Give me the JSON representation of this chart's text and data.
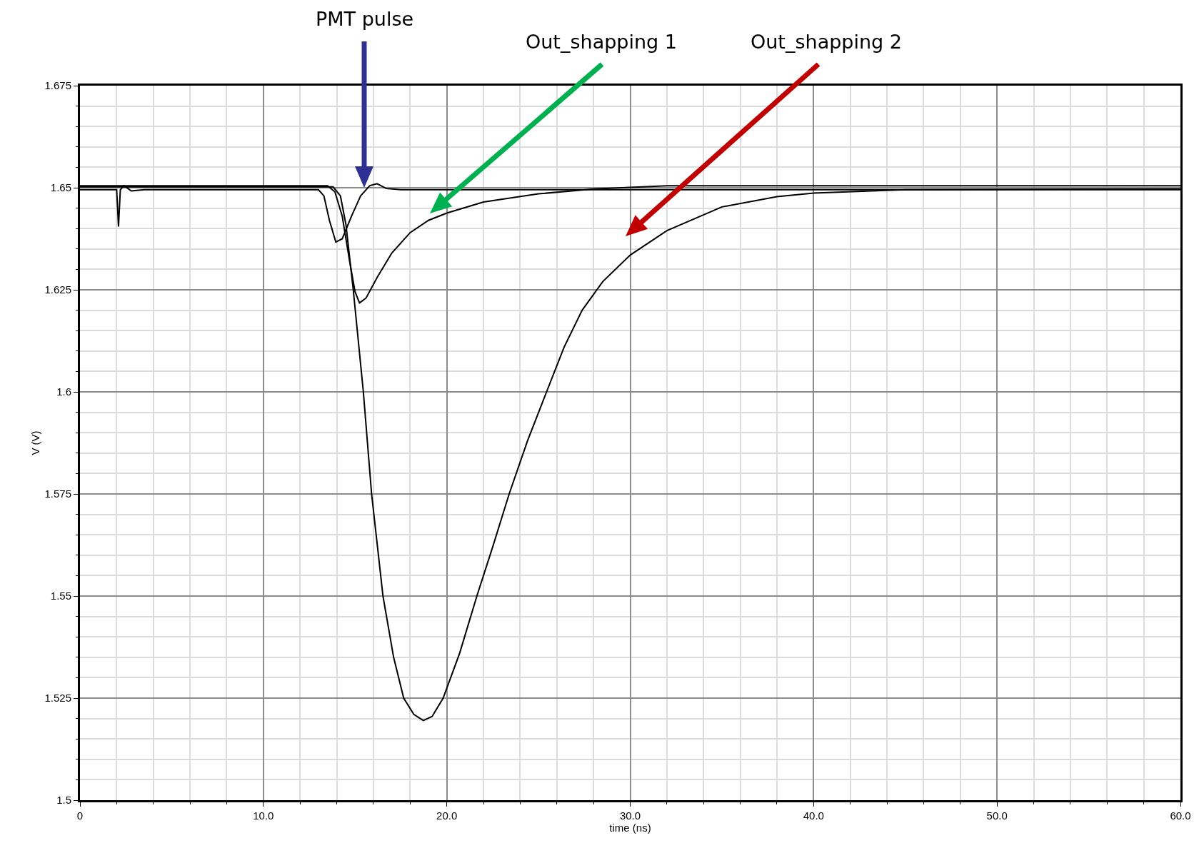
{
  "chart_data": {
    "type": "line",
    "xlabel": "time (ns)",
    "ylabel": "V (V)",
    "xlim": [
      0,
      60
    ],
    "ylim": [
      1.5,
      1.675
    ],
    "xticks": [
      0,
      {
        "value": 10,
        "label": "10.0"
      },
      {
        "value": 20,
        "label": "20.0"
      },
      {
        "value": 30,
        "label": "30.0"
      },
      {
        "value": 40,
        "label": "40.0"
      },
      {
        "value": 50,
        "label": "50.0"
      },
      {
        "value": 60,
        "label": "60.0"
      }
    ],
    "yticks": [
      1.5,
      1.525,
      1.55,
      1.575,
      1.6,
      1.625,
      1.65,
      1.675
    ],
    "grid": true,
    "marker": "none",
    "line_style": "solid",
    "series": [
      {
        "color": "#000000",
        "x": [
          0,
          2.0,
          2.1,
          2.2,
          2.4,
          2.8,
          3.5,
          13.0,
          13.3,
          13.6,
          13.95,
          14.3,
          14.8,
          15.3,
          15.8,
          16.2,
          16.7,
          17.5,
          60
        ],
        "values": [
          1.6495,
          1.6495,
          1.6405,
          1.6495,
          1.6505,
          1.6492,
          1.6495,
          1.6495,
          1.648,
          1.642,
          1.6367,
          1.6375,
          1.643,
          1.648,
          1.6505,
          1.651,
          1.6498,
          1.6495,
          1.6495
        ]
      },
      {
        "color": "#000000",
        "x": [
          0,
          13.5,
          13.9,
          14.3,
          14.7,
          15.0,
          15.24,
          15.6,
          16.2,
          17.0,
          18.0,
          19.0,
          20.0,
          22.0,
          25.0,
          28.0,
          32.0,
          60
        ],
        "values": [
          1.6505,
          1.6505,
          1.649,
          1.643,
          1.632,
          1.6245,
          1.6218,
          1.623,
          1.628,
          1.634,
          1.639,
          1.642,
          1.6438,
          1.6465,
          1.6485,
          1.6497,
          1.6505,
          1.6505
        ]
      },
      {
        "color": "#000000",
        "x": [
          0,
          13.8,
          14.2,
          14.5,
          14.9,
          15.45,
          15.9,
          16.52,
          17.1,
          17.65,
          18.2,
          18.72,
          19.2,
          19.8,
          20.7,
          21.64,
          22.5,
          23.4,
          24.4,
          25.44,
          26.4,
          27.38,
          28.5,
          30.0,
          32.0,
          35.0,
          38.0,
          40.0,
          45.0,
          60
        ],
        "values": [
          1.6502,
          1.6502,
          1.648,
          1.641,
          1.625,
          1.6,
          1.575,
          1.55,
          1.535,
          1.525,
          1.521,
          1.5195,
          1.5205,
          1.525,
          1.536,
          1.55,
          1.562,
          1.575,
          1.588,
          1.6,
          1.611,
          1.62,
          1.627,
          1.6335,
          1.6395,
          1.6453,
          1.6478,
          1.6487,
          1.6495,
          1.6497
        ]
      }
    ],
    "annotations": [
      "PMT pulse",
      "Out_shapping 1",
      "Out_shapping 2"
    ]
  }
}
